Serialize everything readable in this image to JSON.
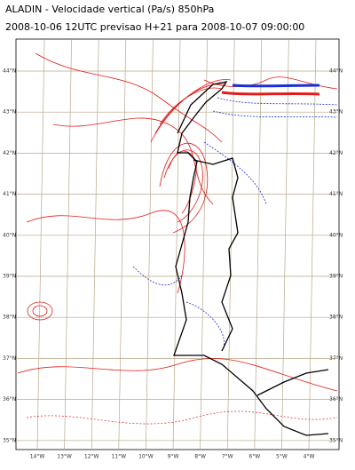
{
  "header": {
    "title": "ALADIN  -  Velocidade vertical (Pa/s) 850hPa",
    "subtitle": "2008-10-06  12UTC  previsao H+21 para  2008-10-07 09:00:00"
  },
  "map": {
    "latitudes": [
      "44°N",
      "43°N",
      "42°N",
      "41°N",
      "40°N",
      "39°N",
      "38°N",
      "37°N",
      "36°N",
      "35°N"
    ],
    "longitudes": [
      "14°W",
      "13°W",
      "12°W",
      "11°W",
      "10°W",
      "9°W",
      "8°W",
      "7°W",
      "6°W",
      "5°W",
      "4°W"
    ]
  }
}
